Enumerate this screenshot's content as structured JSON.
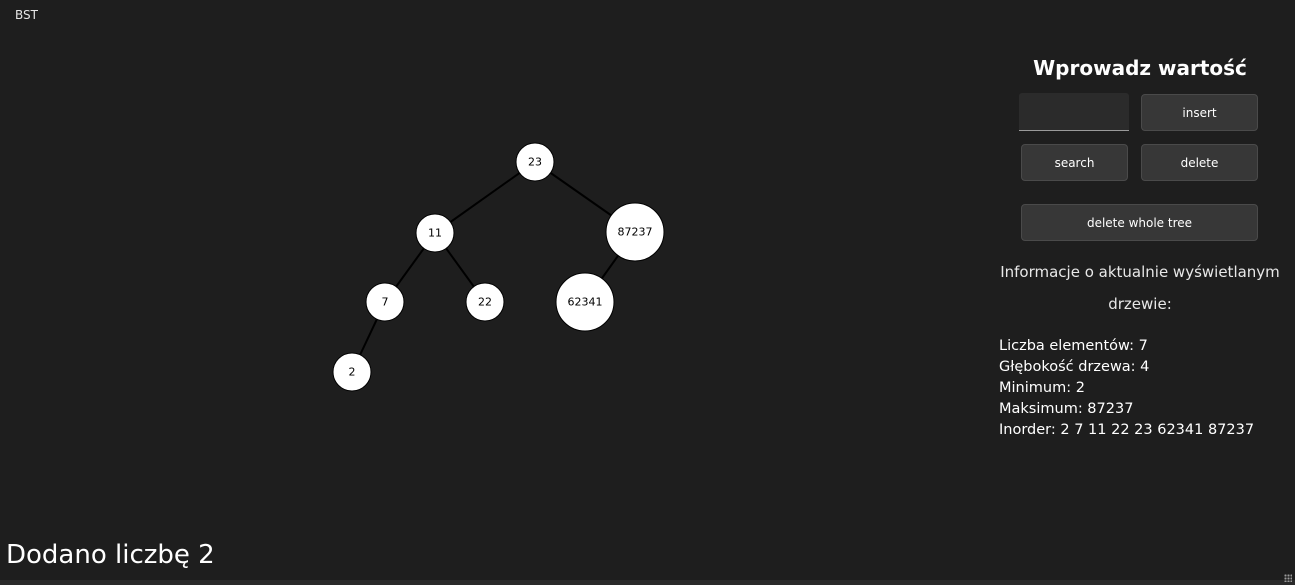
{
  "window": {
    "title": "BST"
  },
  "panel": {
    "title": "Wprowadz wartość",
    "input": {
      "value": "",
      "placeholder": ""
    },
    "buttons": {
      "insert": "insert",
      "search": "search",
      "delete": "delete",
      "delete_all": "delete whole tree"
    }
  },
  "info": {
    "heading_line1": "Informacje o aktualnie wyświetlanym",
    "heading_line2": "drzewie:",
    "count": "Liczba elementów: 7",
    "depth": "Głębokość drzewa: 4",
    "min": "Minimum: 2",
    "max": "Maksimum: 87237",
    "inorder": "Inorder: 2 7 11 22 23 62341 87237"
  },
  "status": {
    "message": "Dodano liczbę 2"
  },
  "tree": {
    "nodes": [
      {
        "id": "n23",
        "value": "23"
      },
      {
        "id": "n11",
        "value": "11"
      },
      {
        "id": "n87237",
        "value": "87237"
      },
      {
        "id": "n7",
        "value": "7"
      },
      {
        "id": "n22",
        "value": "22"
      },
      {
        "id": "n62341",
        "value": "62341"
      },
      {
        "id": "n2",
        "value": "2"
      }
    ],
    "edges": [
      [
        "n23",
        "n11"
      ],
      [
        "n23",
        "n87237"
      ],
      [
        "n11",
        "n7"
      ],
      [
        "n11",
        "n22"
      ],
      [
        "n87237",
        "n62341"
      ],
      [
        "n7",
        "n2"
      ]
    ]
  }
}
